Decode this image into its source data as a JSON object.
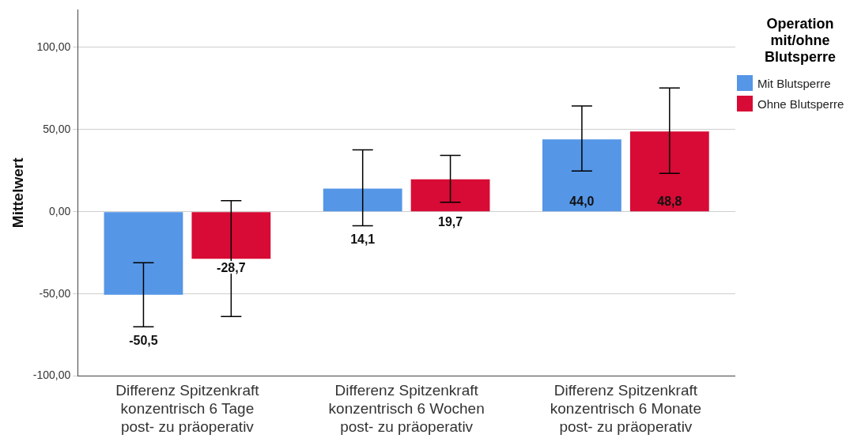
{
  "chart_data": {
    "type": "bar",
    "ylabel": "Mittelwert",
    "legend_title": "Operation mit/ohne Blutsperre",
    "legend": "right",
    "categories": [
      "Differenz Spitzenkraft konzentrisch 6 Tage post- zu präoperativ",
      "Differenz Spitzenkraft konzentrisch 6 Wochen post- zu präoperativ",
      "Differenz Spitzenkraft konzentrisch 6 Monate post- zu präoperativ"
    ],
    "series": [
      {
        "name": "Mit Blutsperre",
        "color": "#5596e6",
        "values": [
          -50.5,
          14.1,
          44.0
        ],
        "errors": [
          [
            -70,
            -31
          ],
          [
            -8.6,
            37.6
          ],
          [
            24.8,
            64.3
          ]
        ],
        "value_labels": [
          "-50,5",
          "14,1",
          "44,0"
        ]
      },
      {
        "name": "Ohne Blutsperre",
        "color": "#d70b35",
        "values": [
          -28.7,
          19.7,
          48.8
        ],
        "errors": [
          [
            -63.8,
            6.7
          ],
          [
            5.7,
            34.3
          ],
          [
            23.3,
            75.2
          ]
        ],
        "value_labels": [
          "-28,7",
          "19,7",
          "48,8"
        ]
      }
    ],
    "ylim": [
      -100,
      123
    ],
    "yticks": [
      {
        "value": -100,
        "label": "-100,00"
      },
      {
        "value": -50,
        "label": "-50,00"
      },
      {
        "value": 0,
        "label": "0,00"
      },
      {
        "value": 50,
        "label": "50,00"
      },
      {
        "value": 100,
        "label": "100,00"
      }
    ],
    "grid": "y"
  }
}
